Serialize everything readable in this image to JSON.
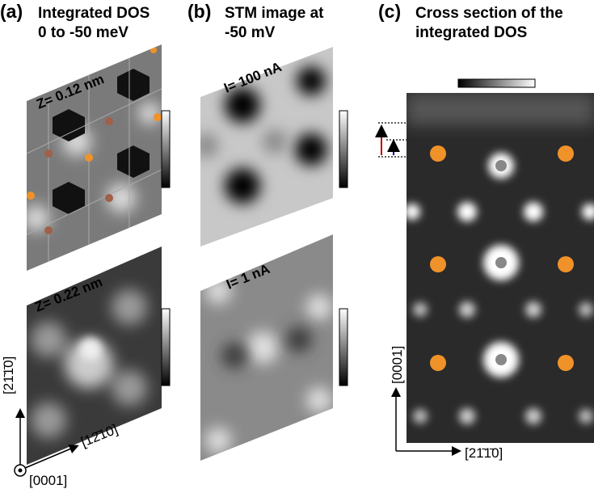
{
  "panels": [
    {
      "label": "(a)",
      "title": [
        "Integrated DOS",
        "0 to -50 meV"
      ],
      "images": [
        "Z= 0.12 nm",
        "Z= 0.22 nm"
      ]
    },
    {
      "label": "(b)",
      "title": [
        "STM image at",
        "-50 mV"
      ],
      "images": [
        "I= 100 nA",
        "I= 1 nA"
      ]
    },
    {
      "label": "(c)",
      "title": [
        "Cross section of the",
        "integrated DOS"
      ]
    }
  ],
  "axes": {
    "a_vertical": "[21̄1̄0]",
    "a_diagonal": "[12̄10]",
    "a_normal": "[0001]",
    "c_vertical": "[0001]",
    "c_horizontal": "[21̄1̄0]"
  }
}
